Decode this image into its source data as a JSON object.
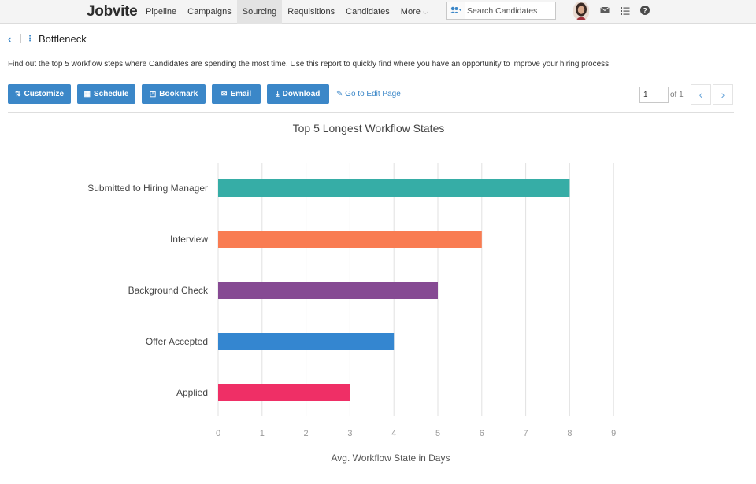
{
  "nav": {
    "logo": "Jobvite",
    "items": [
      "Pipeline",
      "Campaigns",
      "Sourcing",
      "Requisitions",
      "Candidates"
    ],
    "more_label": "More",
    "search_placeholder": "Search Candidates"
  },
  "header": {
    "title": "Bottleneck",
    "description": "Find out the top 5 workflow steps where Candidates are spending the most time. Use this report to quickly find where you have an opportunity to improve your hiring process."
  },
  "toolbar": {
    "customize": "Customize",
    "schedule": "Schedule",
    "bookmark": "Bookmark",
    "email": "Email",
    "download": "Download",
    "edit_link": "Go to Edit Page"
  },
  "pager": {
    "page": "1",
    "of_label": "of 1"
  },
  "colors": {
    "accent": "#3b87c8",
    "bars": [
      "#36ada6",
      "#f97c52",
      "#864a93",
      "#3486d0",
      "#ef2f66"
    ]
  },
  "chart_data": {
    "type": "bar",
    "orientation": "horizontal",
    "title": "Top 5 Longest Workflow States",
    "categories": [
      "Submitted to Hiring Manager",
      "Interview",
      "Background Check",
      "Offer Accepted",
      "Applied"
    ],
    "values": [
      8,
      6,
      5,
      4,
      3
    ],
    "xlabel": "Avg. Workflow State in Days",
    "ylabel": "",
    "xlim": [
      0,
      9
    ],
    "ticks": [
      "0",
      "1",
      "2",
      "3",
      "4",
      "5",
      "6",
      "7",
      "8",
      "9"
    ],
    "grid": true
  }
}
